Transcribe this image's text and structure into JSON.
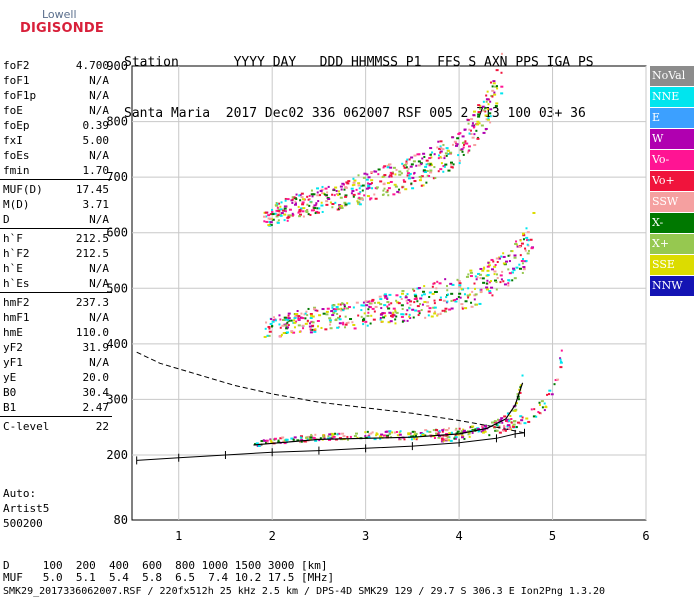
{
  "logo": {
    "line1": "Lowell",
    "line2": "DIGISONDE"
  },
  "header": {
    "labels_line": "Station       YYYY DAY   DDD HHMMSS P1  FFS S AXN PPS IGA PS",
    "values_line": "Santa Maria  2017 Dec02 336 062007 RSF 005 2 713 100 03+ 36"
  },
  "params": [
    {
      "label": "foF2",
      "value": "4.700"
    },
    {
      "label": "foF1",
      "value": "N/A"
    },
    {
      "label": "foF1p",
      "value": "N/A"
    },
    {
      "label": "foE",
      "value": "N/A"
    },
    {
      "label": "foEp",
      "value": "0.39"
    },
    {
      "label": "fxI",
      "value": "5.00"
    },
    {
      "label": "foEs",
      "value": "N/A"
    },
    {
      "label": "fmin",
      "value": "1.70"
    },
    {
      "label": "MUF(D)",
      "value": "17.45"
    },
    {
      "label": "M(D)",
      "value": "3.71"
    },
    {
      "label": "D",
      "value": "N/A"
    },
    {
      "label": "h`F",
      "value": "212.5"
    },
    {
      "label": "h`F2",
      "value": "212.5"
    },
    {
      "label": "h`E",
      "value": "N/A"
    },
    {
      "label": "h`Es",
      "value": "N/A"
    },
    {
      "label": "hmF2",
      "value": "237.3"
    },
    {
      "label": "hmF1",
      "value": "N/A"
    },
    {
      "label": "hmE",
      "value": "110.0"
    },
    {
      "label": "yF2",
      "value": "31.9"
    },
    {
      "label": "yF1",
      "value": "N/A"
    },
    {
      "label": "yE",
      "value": "20.0"
    },
    {
      "label": "B0",
      "value": "30.4"
    },
    {
      "label": "B1",
      "value": "2.47"
    },
    {
      "label": "C-level",
      "value": "22"
    }
  ],
  "auto": {
    "line1": "Auto:",
    "line2": "Artist5",
    "line3": "500200"
  },
  "legend": [
    {
      "label": "NoVal",
      "color": "#8c8c8c"
    },
    {
      "label": "NNE",
      "color": "#00e5ee"
    },
    {
      "label": "E",
      "color": "#3ca0ff"
    },
    {
      "label": "W",
      "color": "#b000b0"
    },
    {
      "label": "Vo-",
      "color": "#ff1493"
    },
    {
      "label": "Vo+",
      "color": "#f0143c"
    },
    {
      "label": "SSW",
      "color": "#f5a0a0"
    },
    {
      "label": "X-",
      "color": "#007800"
    },
    {
      "label": "X+",
      "color": "#96c850"
    },
    {
      "label": "SSE",
      "color": "#dcdc00"
    },
    {
      "label": "NNW",
      "color": "#1414b4"
    }
  ],
  "chart_data": {
    "type": "scatter",
    "title": "",
    "xlabel": "",
    "ylabel": "",
    "xlim": [
      0.5,
      6
    ],
    "ylim": [
      80,
      900
    ],
    "x_ticks": [
      "1",
      "2",
      "3",
      "4",
      "5",
      "6"
    ],
    "y_ticks": [
      "80",
      "200",
      "300",
      "400",
      "500",
      "600",
      "700",
      "800",
      "900"
    ],
    "y_scale": "ionogram height scale (80-200 km compressed)",
    "grid": true,
    "legend_position": "right",
    "traces": [
      {
        "name": "F2 trace",
        "points": [
          [
            1.8,
            220
          ],
          [
            2.0,
            225
          ],
          [
            2.5,
            232
          ],
          [
            3.0,
            235
          ],
          [
            3.5,
            235
          ],
          [
            4.0,
            240
          ],
          [
            4.3,
            250
          ],
          [
            4.5,
            265
          ],
          [
            4.6,
            290
          ],
          [
            4.68,
            340
          ],
          [
            4.7,
            370
          ]
        ]
      },
      {
        "name": "2F trace",
        "points": [
          [
            1.9,
            425
          ],
          [
            2.3,
            435
          ],
          [
            2.8,
            445
          ],
          [
            3.3,
            458
          ],
          [
            3.8,
            475
          ],
          [
            4.2,
            495
          ],
          [
            4.5,
            525
          ],
          [
            4.7,
            560
          ],
          [
            4.8,
            610
          ]
        ]
      },
      {
        "name": "3F trace",
        "points": [
          [
            1.9,
            625
          ],
          [
            2.3,
            645
          ],
          [
            2.8,
            665
          ],
          [
            3.3,
            690
          ],
          [
            3.7,
            715
          ],
          [
            4.0,
            750
          ],
          [
            4.2,
            790
          ],
          [
            4.35,
            830
          ],
          [
            4.45,
            880
          ]
        ]
      },
      {
        "name": "extraordinary trace",
        "points": [
          [
            3.8,
            230
          ],
          [
            4.2,
            240
          ],
          [
            4.6,
            255
          ],
          [
            4.9,
            285
          ],
          [
            5.05,
            340
          ],
          [
            5.1,
            400
          ]
        ]
      }
    ],
    "profile": [
      [
        0.55,
        190
      ],
      [
        1.0,
        195
      ],
      [
        1.5,
        200
      ],
      [
        2.0,
        205
      ],
      [
        2.5,
        208
      ],
      [
        3.0,
        212
      ],
      [
        3.5,
        216
      ],
      [
        4.0,
        222
      ],
      [
        4.4,
        230
      ],
      [
        4.6,
        238
      ],
      [
        4.7,
        240
      ]
    ],
    "profile_upper": [
      [
        0.55,
        385
      ],
      [
        0.8,
        365
      ],
      [
        1.2,
        345
      ],
      [
        1.6,
        325
      ],
      [
        2.0,
        310
      ],
      [
        2.5,
        295
      ],
      [
        3.0,
        285
      ],
      [
        3.5,
        275
      ],
      [
        4.0,
        262
      ],
      [
        4.4,
        250
      ],
      [
        4.7,
        240
      ]
    ],
    "fit_curve": [
      [
        1.8,
        218
      ],
      [
        2.5,
        228
      ],
      [
        3.5,
        232
      ],
      [
        4.0,
        238
      ],
      [
        4.3,
        248
      ],
      [
        4.5,
        265
      ],
      [
        4.6,
        290
      ],
      [
        4.68,
        330
      ]
    ]
  },
  "footer": {
    "line1": "D     100  200  400  600  800 1000 1500 3000 [km]",
    "line2": "MUF   5.0  5.1  5.4  5.8  6.5  7.4 10.2 17.5 [MHz]"
  },
  "file_line": "SMK29_2017336062007.RSF / 220fx512h 25 kHz 2.5 km / DPS-4D SMK29 129 / 29.7 S 306.3 E Ion2Png 1.3.20"
}
